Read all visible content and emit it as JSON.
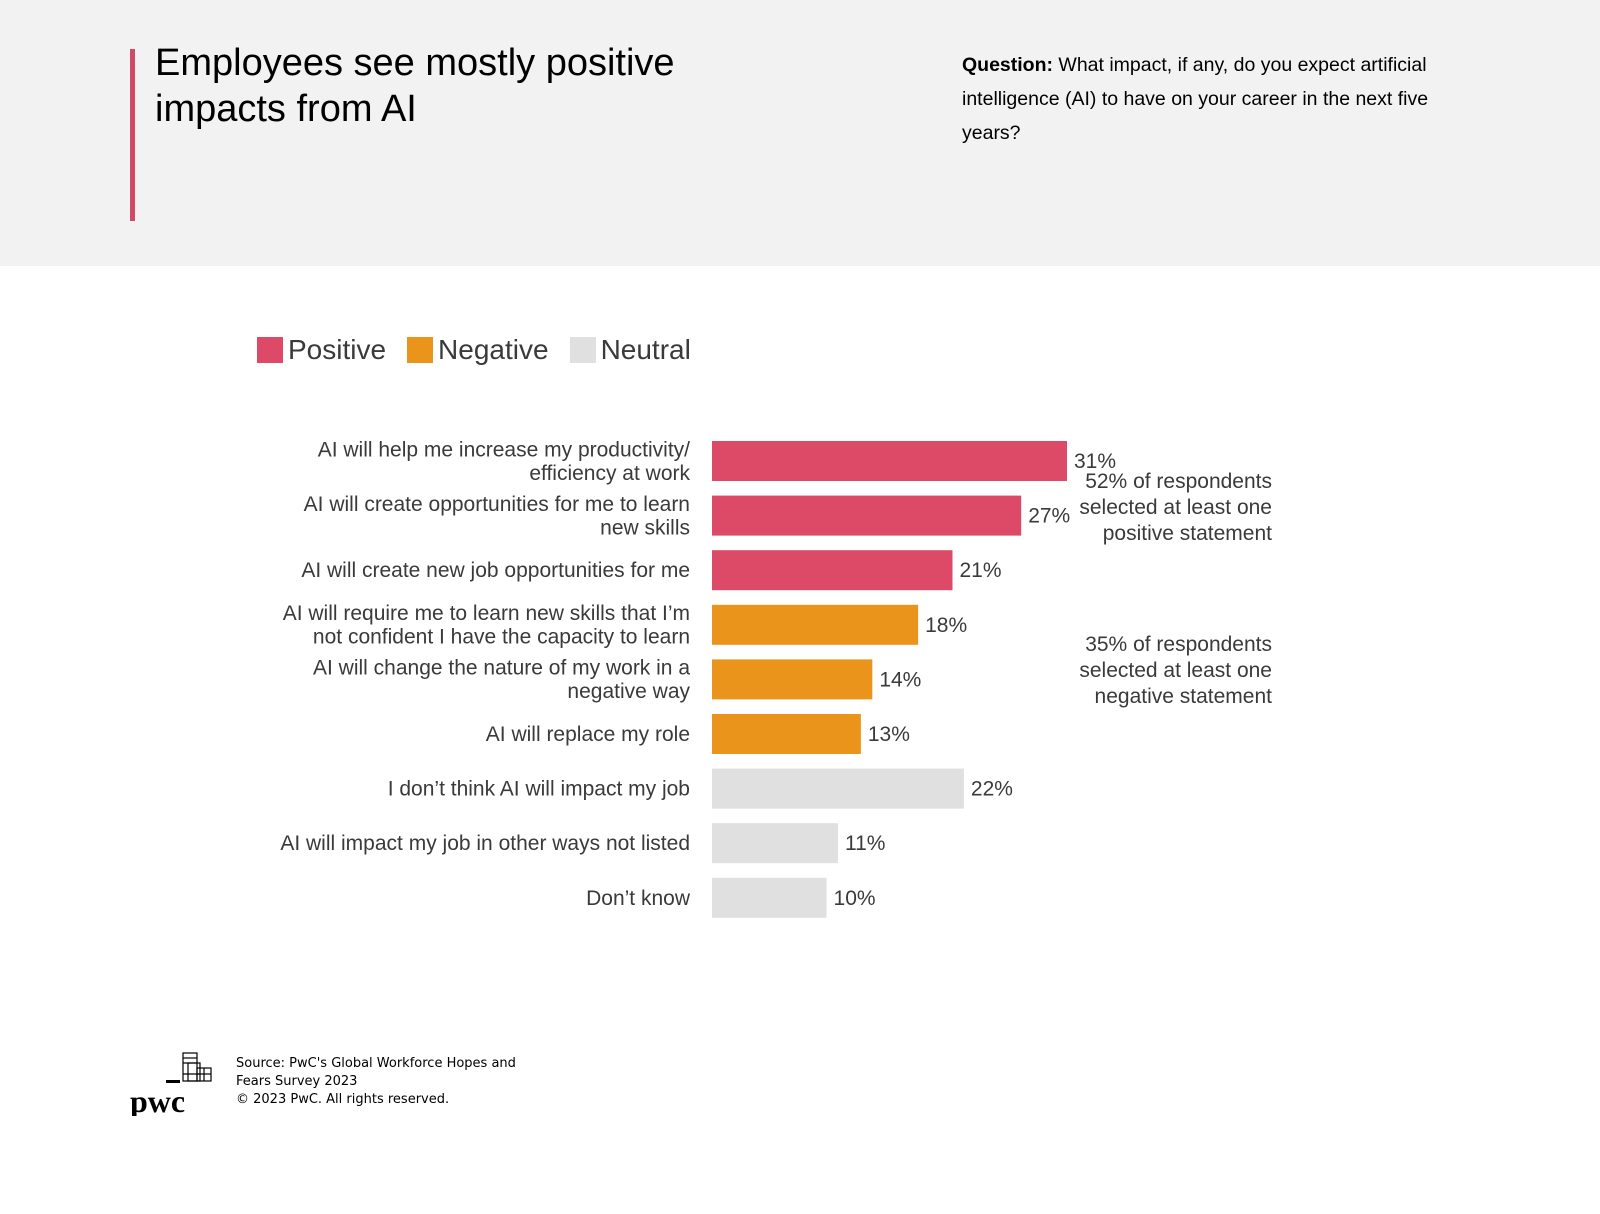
{
  "header": {
    "title_line1": "Employees see mostly positive",
    "title_line2": "impacts from AI",
    "question_label": "Question:",
    "question_text": " What impact, if any, do you expect artificial intelligence (AI) to have on your career in the next five years?",
    "accent_color": "#d04a68"
  },
  "legend": [
    {
      "label": "Positive",
      "color": "#dc4a67"
    },
    {
      "label": "Negative",
      "color": "#eb941c"
    },
    {
      "label": "Neutral",
      "color": "#e0e0e0"
    }
  ],
  "chart_data": {
    "type": "bar",
    "orientation": "horizontal",
    "title": "Employees see mostly positive impacts from AI",
    "xlabel": "",
    "ylabel": "",
    "xlim": [
      0,
      31
    ],
    "grid": false,
    "legend_position": "top-left",
    "categories": [
      [
        "AI will help me increase my productivity/",
        "efficiency at work"
      ],
      [
        "AI will create opportunities for me to learn",
        "new skills"
      ],
      [
        "AI will create new job opportunities for me"
      ],
      [
        "AI will require me to learn new skills that I’m",
        "not confident I have the capacity to learn"
      ],
      [
        "AI will change the nature of my work in a",
        "negative way"
      ],
      [
        "AI will replace my role"
      ],
      [
        "I don’t think AI will impact my job"
      ],
      [
        "AI will impact my job in other ways not listed"
      ],
      [
        "Don’t know"
      ]
    ],
    "values": [
      31,
      27,
      21,
      18,
      14,
      13,
      22,
      11,
      10
    ],
    "value_labels": [
      "31%",
      "27%",
      "21%",
      "18%",
      "14%",
      "13%",
      "22%",
      "11%",
      "10%"
    ],
    "groups": [
      "Positive",
      "Positive",
      "Positive",
      "Negative",
      "Negative",
      "Negative",
      "Neutral",
      "Neutral",
      "Neutral"
    ],
    "colors": {
      "Positive": "#dc4a67",
      "Negative": "#eb941c",
      "Neutral": "#e0e0e0"
    },
    "annotations": [
      {
        "group": "Positive",
        "lines": [
          "52% of respondents",
          "selected at least one",
          "positive statement"
        ]
      },
      {
        "group": "Negative",
        "lines": [
          "35% of respondents",
          "selected at least one",
          "negative statement"
        ]
      }
    ]
  },
  "footer": {
    "logo_text": "pwc",
    "source_line1": "Source: PwC's Global Workforce Hopes and",
    "source_line2": "Fears Survey 2023",
    "copyright": "© 2023 PwC. All rights reserved."
  }
}
